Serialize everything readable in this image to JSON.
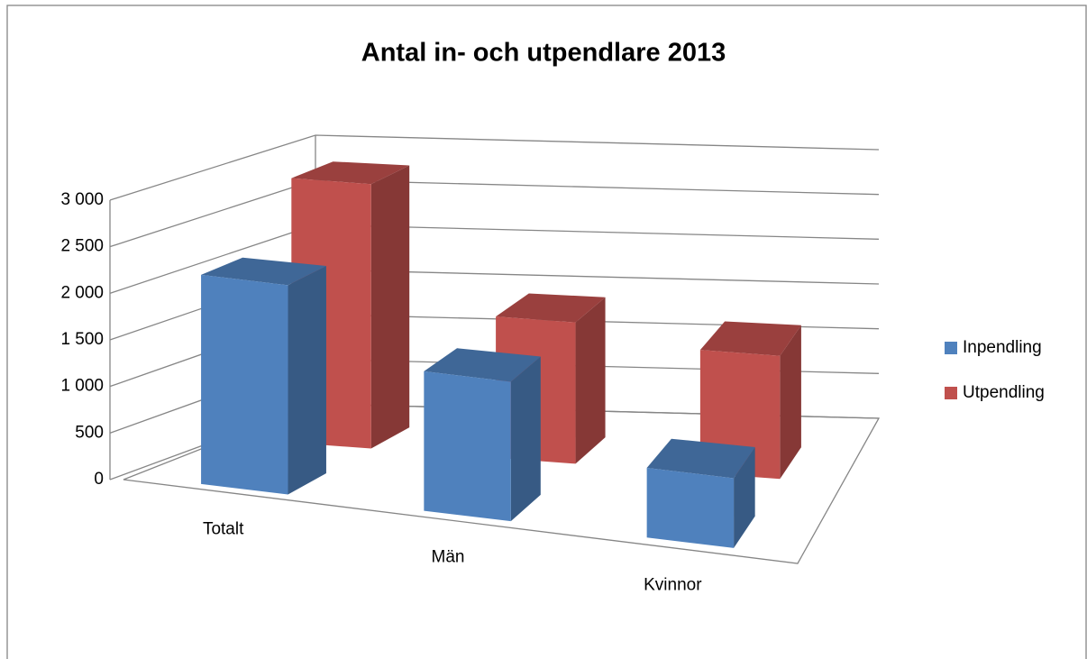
{
  "chart_data": {
    "type": "bar3d",
    "title": "Antal in- och utpendlare 2013",
    "categories": [
      "Totalt",
      "Män",
      "Kvinnor"
    ],
    "series": [
      {
        "name": "Inpendling",
        "color": "#4f81bd",
        "values": [
          2250,
          1500,
          750
        ]
      },
      {
        "name": "Utpendling",
        "color": "#c0504d",
        "values": [
          2900,
          1550,
          1350
        ]
      }
    ],
    "ylim": [
      0,
      3000
    ],
    "yticks": [
      0,
      500,
      {
        "value": 1000,
        "label": "1 000"
      },
      {
        "value": 1500,
        "label": "1 500"
      },
      {
        "value": 2000,
        "label": "2 000"
      },
      {
        "value": 2500,
        "label": "2 500"
      },
      {
        "value": 3000,
        "label": "3 000"
      }
    ],
    "grid": true,
    "legend": "right"
  }
}
